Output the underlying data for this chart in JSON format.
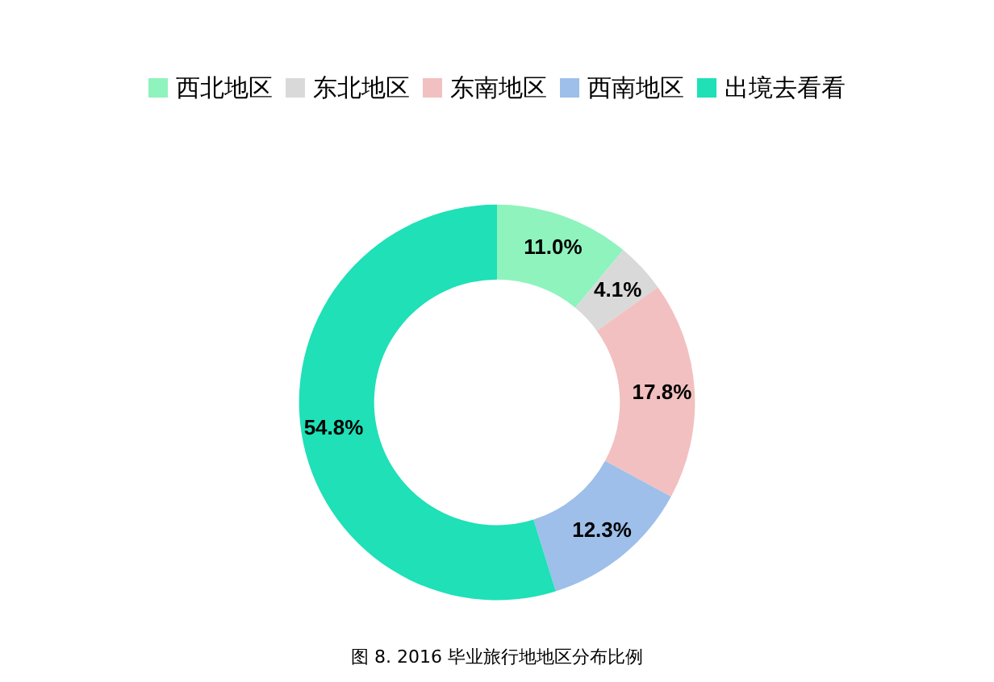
{
  "chart_data": {
    "type": "donut",
    "categories": [
      "西北地区",
      "东北地区",
      "东南地区",
      "西南地区",
      "出境去看看"
    ],
    "values": [
      11.0,
      4.1,
      17.8,
      12.3,
      54.8
    ],
    "value_labels": [
      "11.0%",
      "4.1%",
      "17.8%",
      "12.3%",
      "54.8%"
    ],
    "colors": [
      "#8ff3bd",
      "#d9d9d9",
      "#f2c0c0",
      "#9dbfe9",
      "#1fe0b7"
    ],
    "legend": "top",
    "annotations": [
      "图 8. 2016 毕业旅行地地区分布比例"
    ]
  }
}
